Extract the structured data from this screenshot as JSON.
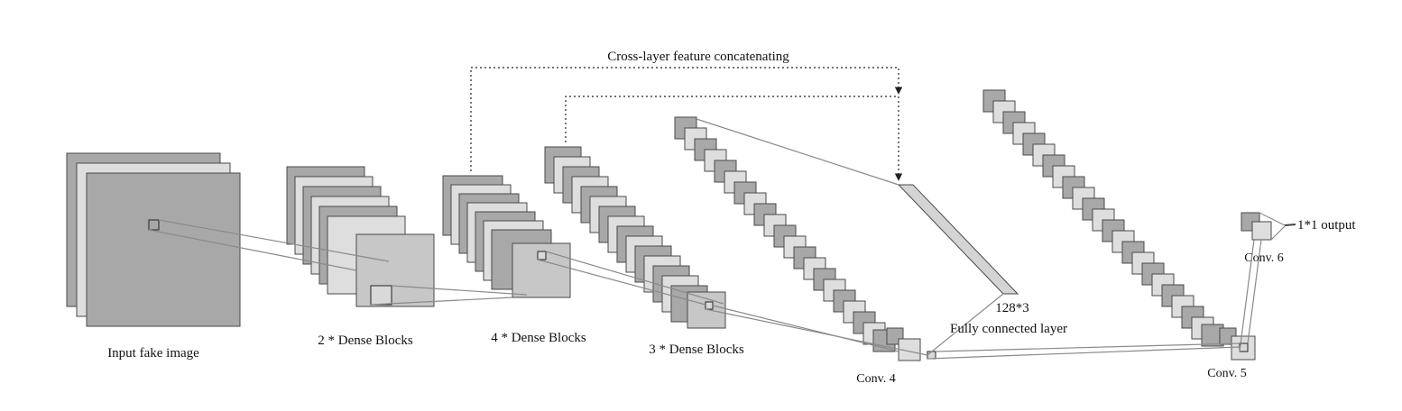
{
  "labels": {
    "input": "Input fake image",
    "dense2": "2 * Dense Blocks",
    "dense4": "4 * Dense Blocks",
    "dense3": "3 * Dense Blocks",
    "conv4": "Conv. 4",
    "conv5": "Conv. 5",
    "conv6": "Conv. 6",
    "fc_size": "128*3",
    "fc": "Fully connected layer",
    "concat": "Cross-layer feature concatenating",
    "output": "1*1 output"
  },
  "colors": {
    "dark_map": "#a8a8a8",
    "light_map": "#dedede",
    "stroke": "#4a4a4a",
    "connector": "#8a8a8a",
    "arrow": "#222222"
  }
}
